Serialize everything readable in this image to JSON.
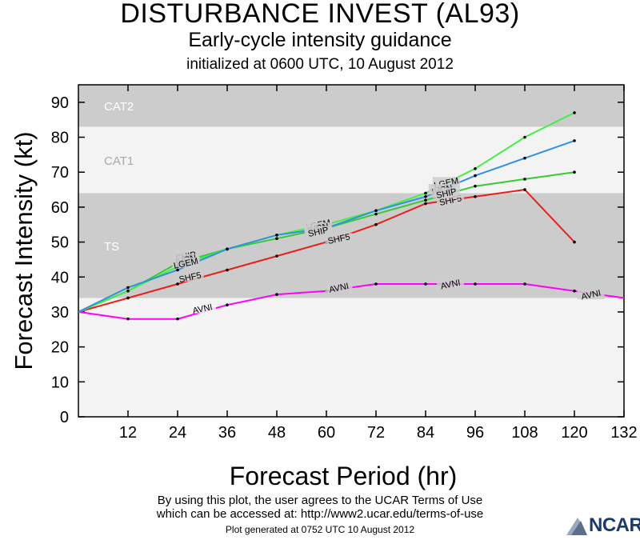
{
  "header": {
    "title": "DISTURBANCE INVEST (AL93)",
    "subtitle": "Early-cycle intensity guidance",
    "init_line": "initialized at 0600 UTC, 10 August 2012"
  },
  "footer": {
    "terms_line1": "By using this plot, the user agrees to the UCAR Terms of Use",
    "terms_line2": "which can be accessed at: http://www2.ucar.edu/terms-of-use",
    "generated": "Plot generated at 0752 UTC    10 August 2012",
    "logo_text": "NCAR"
  },
  "chart_data": {
    "type": "line",
    "xlabel": "Forecast Period (hr)",
    "ylabel": "Forecast Intensity (kt)",
    "xlim": [
      0,
      132
    ],
    "ylim": [
      0,
      95
    ],
    "xticks": [
      12,
      24,
      36,
      48,
      60,
      72,
      84,
      96,
      108,
      120,
      132
    ],
    "yticks": [
      0,
      10,
      20,
      30,
      40,
      50,
      60,
      70,
      80,
      90
    ],
    "bands": [
      {
        "name": "TS",
        "from": 34,
        "to": 64,
        "color": "#cccccc"
      },
      {
        "name": "CAT1",
        "from": 64,
        "to": 83,
        "color": "#f3f3f3"
      },
      {
        "name": "CAT2",
        "from": 83,
        "to": 95,
        "color": "#cccccc"
      }
    ],
    "series": [
      {
        "name": "AVNI",
        "color": "#ff00ff",
        "x": [
          0,
          12,
          24,
          36,
          48,
          60,
          72,
          84,
          96,
          108,
          120,
          132
        ],
        "y": [
          30,
          28,
          28,
          32,
          35,
          36,
          38,
          38,
          38,
          38,
          36,
          34
        ]
      },
      {
        "name": "SHF5",
        "color": "#e8201a",
        "x": [
          0,
          12,
          24,
          36,
          48,
          60,
          72,
          84,
          96,
          108,
          120
        ],
        "y": [
          30,
          34,
          38,
          42,
          46,
          50,
          55,
          61,
          63,
          65,
          50
        ]
      },
      {
        "name": "SHIP",
        "color": "#33cc33",
        "x": [
          0,
          12,
          24,
          36,
          48,
          60,
          72,
          84,
          96,
          108,
          120
        ],
        "y": [
          30,
          36,
          44,
          48,
          51,
          54,
          58,
          62,
          66,
          68,
          70
        ]
      },
      {
        "name": "LGEM",
        "color": "#44ee44",
        "x": [
          0,
          12,
          24,
          36,
          48,
          60,
          72,
          84,
          96,
          108,
          120
        ],
        "y": [
          30,
          36,
          43,
          48,
          52,
          55,
          59,
          64,
          71,
          80,
          87
        ]
      },
      {
        "name": "IVCN",
        "color": "#3390e0",
        "x": [
          0,
          12,
          24,
          36,
          48,
          60,
          72,
          84,
          96,
          108,
          120
        ],
        "y": [
          30,
          37,
          42,
          48,
          52,
          54,
          59,
          63,
          69,
          74,
          79
        ]
      }
    ],
    "labels": [
      {
        "text": "AVNI",
        "x": 30,
        "y": 31
      },
      {
        "text": "AVNI",
        "x": 63,
        "y": 37
      },
      {
        "text": "AVNI",
        "x": 90,
        "y": 38
      },
      {
        "text": "AVNI",
        "x": 124,
        "y": 35
      },
      {
        "text": "SHF5",
        "x": 27,
        "y": 40
      },
      {
        "text": "SHF5",
        "x": 63,
        "y": 51
      },
      {
        "text": "SHF5",
        "x": 90,
        "y": 62
      },
      {
        "text": "SHIP",
        "x": 26,
        "y": 46
      },
      {
        "text": "IVCN",
        "x": 26,
        "y": 45
      },
      {
        "text": "LGEM",
        "x": 26,
        "y": 44
      },
      {
        "text": "LGEM",
        "x": 58,
        "y": 55
      },
      {
        "text": "IVCN",
        "x": 58,
        "y": 54
      },
      {
        "text": "SHIP",
        "x": 58,
        "y": 53
      },
      {
        "text": "LGEM",
        "x": 89,
        "y": 67
      },
      {
        "text": "IVCN",
        "x": 88,
        "y": 65
      },
      {
        "text": "SHIP",
        "x": 89,
        "y": 64
      }
    ]
  }
}
